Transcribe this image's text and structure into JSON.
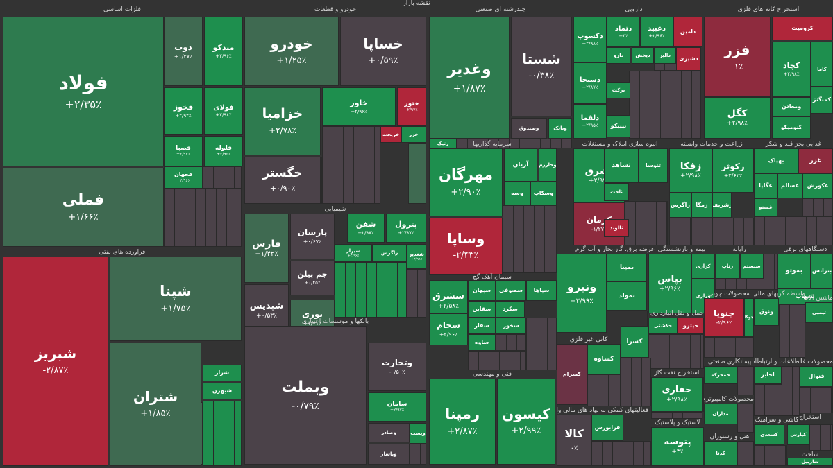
{
  "colors": {
    "pos3": "#1e8f4e",
    "pos2": "#2e7b4f",
    "pos1": "#3f6a51",
    "neu": "#4b4249",
    "neg1": "#6b3345",
    "neg2": "#8e2b3e",
    "neg3": "#b0263a",
    "bg": "#333333"
  },
  "map": {
    "title": "نقشه بازار",
    "sectors": [
      {
        "name": "فلزات اساسی",
        "tiles": [
          {
            "s": "فولاد",
            "c": "+۲/۳۵٪",
            "tone": "pos2"
          },
          {
            "s": "فملی",
            "c": "+۱/۶۶٪",
            "tone": "pos1"
          },
          {
            "s": "ذوب",
            "c": "+۱/۳۷٪",
            "tone": "pos1"
          },
          {
            "s": "میدکو",
            "c": "+۲/۹۶٪",
            "tone": "pos3"
          },
          {
            "s": "فخوز",
            "c": "+۲/۹۴٪",
            "tone": "pos3"
          },
          {
            "s": "فولای",
            "c": "+۲/۹۸٪",
            "tone": "pos3"
          },
          {
            "s": "فصبا",
            "c": "+۲/۹۷٪",
            "tone": "pos3"
          },
          {
            "s": "فلوله",
            "c": "+۲/۹۵٪",
            "tone": "pos3"
          },
          {
            "s": "فجهان",
            "c": "+۲/۹۶٪",
            "tone": "pos3"
          }
        ]
      },
      {
        "name": "فراورده های نفتی",
        "tiles": [
          {
            "s": "شبریز",
            "c": "-۲/۸۷٪",
            "tone": "neg3"
          },
          {
            "s": "شپنا",
            "c": "+۱/۷۵٪",
            "tone": "pos1"
          },
          {
            "s": "شتران",
            "c": "+۱/۸۵٪",
            "tone": "pos1"
          },
          {
            "s": "شراز",
            "c": "",
            "tone": "pos3"
          },
          {
            "s": "شبهرن",
            "c": "",
            "tone": "pos3"
          }
        ]
      },
      {
        "name": "خودرو و قطعات",
        "tiles": [
          {
            "s": "خودرو",
            "c": "+۱/۲۵٪",
            "tone": "pos1"
          },
          {
            "s": "خساپا",
            "c": "+۰/۵۹٪",
            "tone": "neu"
          },
          {
            "s": "خزامیا",
            "c": "+۲/۷۸٪",
            "tone": "pos2"
          },
          {
            "s": "خگستر",
            "c": "+۰/۹۰٪",
            "tone": "neu"
          },
          {
            "s": "خاور",
            "c": "+۲/۹۶٪",
            "tone": "pos3"
          },
          {
            "s": "ختور",
            "c": "-۲/۹۷٪",
            "tone": "neg3"
          },
          {
            "s": "خریخت",
            "c": "",
            "tone": "neg3"
          },
          {
            "s": "خزر",
            "c": "",
            "tone": "pos3"
          }
        ]
      },
      {
        "name": "شیمیایی",
        "tiles": [
          {
            "s": "فارس",
            "c": "+۱/۴۲٪",
            "tone": "pos1"
          },
          {
            "s": "پارسان",
            "c": "+۰/۶۷٪",
            "tone": "neu"
          },
          {
            "s": "جم پیلن",
            "c": "+۰/۴۵٪",
            "tone": "neu"
          },
          {
            "s": "شپدیس",
            "c": "+۰/۵۳٪",
            "tone": "neu"
          },
          {
            "s": "نوری",
            "c": "+۱/۷۱٪",
            "tone": "pos1"
          },
          {
            "s": "شفن",
            "c": "+۲/۹۸٪",
            "tone": "pos3"
          },
          {
            "s": "پترول",
            "c": "+۲/۹۷٪",
            "tone": "pos3"
          },
          {
            "s": "شغدیر",
            "c": "+۲/۹۹٪",
            "tone": "pos3"
          },
          {
            "s": "شیراز",
            "c": "+۲/۹۶٪",
            "tone": "pos3"
          },
          {
            "s": "زاگرس",
            "c": "",
            "tone": "pos3"
          },
          {
            "s": "شاراک",
            "c": "",
            "tone": "pos3"
          }
        ]
      },
      {
        "name": "بانکها و موسسات اعتباری",
        "tiles": [
          {
            "s": "وبملت",
            "c": "-۰/۷۹٪",
            "tone": "neu"
          },
          {
            "s": "وتجارت",
            "c": "-۰/۵۰٪",
            "tone": "neu"
          },
          {
            "s": "سامان",
            "c": "+۲/۹۷٪",
            "tone": "pos3"
          },
          {
            "s": "وصادر",
            "c": "",
            "tone": "neu"
          },
          {
            "s": "وپاسار",
            "c": "",
            "tone": "neu"
          },
          {
            "s": "وپست",
            "c": "",
            "tone": "pos3"
          }
        ]
      },
      {
        "name": "چندرشته ای صنعتی",
        "tiles": [
          {
            "s": "وغدیر",
            "c": "+۱/۸۷٪",
            "tone": "pos2"
          },
          {
            "s": "شستا",
            "c": "-۰/۳۸٪",
            "tone": "neu"
          },
          {
            "s": "وصندوق",
            "c": "",
            "tone": "neu"
          },
          {
            "s": "وبانک",
            "c": "",
            "tone": "pos3"
          },
          {
            "s": "رنیک",
            "c": "",
            "tone": "pos3"
          }
        ]
      },
      {
        "name": "سرمایه گذاریها",
        "tiles": [
          {
            "s": "مهرگان",
            "c": "+۲/۹۰٪",
            "tone": "pos3"
          },
          {
            "s": "وساپا",
            "c": "-۲/۴۳٪",
            "tone": "neg3"
          },
          {
            "s": "آریان",
            "c": "",
            "tone": "pos3"
          },
          {
            "s": "وخارزم",
            "c": "",
            "tone": "pos3"
          },
          {
            "s": "وسه",
            "c": "",
            "tone": "pos3"
          },
          {
            "s": "وسکاب",
            "c": "",
            "tone": "pos3"
          }
        ]
      },
      {
        "name": "سیمان آهک گچ",
        "tiles": [
          {
            "s": "سشرق",
            "c": "+۲/۵۸٪",
            "tone": "pos3"
          },
          {
            "s": "سجام",
            "c": "+۲/۹۶٪",
            "tone": "pos3"
          },
          {
            "s": "سپهان",
            "c": "",
            "tone": "pos3"
          },
          {
            "s": "سصوفی",
            "c": "",
            "tone": "pos3"
          },
          {
            "s": "سپاها",
            "c": "",
            "tone": "pos3"
          },
          {
            "s": "سقاین",
            "c": "",
            "tone": "pos3"
          },
          {
            "s": "سکرد",
            "c": "",
            "tone": "pos3"
          },
          {
            "s": "سفار",
            "c": "",
            "tone": "pos3"
          },
          {
            "s": "سخوز",
            "c": "",
            "tone": "pos3"
          },
          {
            "s": "ساوه",
            "c": "",
            "tone": "pos3"
          }
        ]
      },
      {
        "name": "فنی و مهندسی",
        "tiles": [
          {
            "s": "رمپنا",
            "c": "+۲/۸۷٪",
            "tone": "pos3"
          },
          {
            "s": "کیسون",
            "c": "+۲/۹۹٪",
            "tone": "pos3"
          }
        ]
      },
      {
        "name": "دارویی",
        "tiles": [
          {
            "s": "دکسوپ",
            "c": "+۲/۹۸٪",
            "tone": "pos3"
          },
          {
            "s": "دتماد",
            "c": "+۳٪",
            "tone": "pos3"
          },
          {
            "s": "دعبید",
            "c": "+۲/۹۶٪",
            "tone": "pos3"
          },
          {
            "s": "دامین",
            "c": "",
            "tone": "neg3"
          },
          {
            "s": "دسبحا",
            "c": "+۲/۸۷٪",
            "tone": "pos3"
          },
          {
            "s": "دلقما",
            "c": "+۲/۹۵٪",
            "tone": "pos3"
          },
          {
            "s": "دارو",
            "c": "",
            "tone": "pos3"
          },
          {
            "s": "برکت",
            "c": "",
            "tone": "pos3"
          },
          {
            "s": "تیپیکو",
            "c": "",
            "tone": "pos3"
          },
          {
            "s": "دپخش",
            "c": "",
            "tone": "pos3"
          },
          {
            "s": "دالبر",
            "c": "",
            "tone": "pos3"
          },
          {
            "s": "دشیری",
            "c": "",
            "tone": "neg3"
          }
        ]
      },
      {
        "name": "استخراج کانه های فلزی",
        "tiles": [
          {
            "s": "فزر",
            "c": "-۱٪",
            "tone": "neg2"
          },
          {
            "s": "کگل",
            "c": "+۲/۹۸٪",
            "tone": "pos3"
          },
          {
            "s": "کرومیت",
            "c": "",
            "tone": "neg3"
          },
          {
            "s": "کچاد",
            "c": "+۲/۹۸٪",
            "tone": "pos3"
          },
          {
            "s": "کاما",
            "c": "",
            "tone": "pos3"
          },
          {
            "s": "کمنگنز",
            "c": "",
            "tone": "pos3"
          },
          {
            "s": "ومعادن",
            "c": "",
            "tone": "pos3"
          },
          {
            "s": "کنومیکو",
            "c": "",
            "tone": "pos3"
          }
        ]
      },
      {
        "name": "انبوه سازی املاک و مستغلات",
        "tiles": [
          {
            "s": "تشرق",
            "c": "+۲/۹۷٪",
            "tone": "pos3"
          },
          {
            "s": "کرمان",
            "c": "-۱/۲۷٪",
            "tone": "neg2"
          },
          {
            "s": "ثشاهد",
            "c": "",
            "tone": "pos3"
          },
          {
            "s": "ثنوسا",
            "c": "",
            "tone": "pos3"
          },
          {
            "s": "ثاخت",
            "c": "",
            "tone": "pos3"
          },
          {
            "s": "ثالوند",
            "c": "",
            "tone": "neg3"
          }
        ]
      },
      {
        "name": "زراعت و خدمات وابسته",
        "tiles": [
          {
            "s": "زفکا",
            "c": "+۲/۹۸٪",
            "tone": "pos3"
          },
          {
            "s": "زکوثر",
            "c": "+۲/۶۲٪",
            "tone": "pos3"
          },
          {
            "s": "زاگرس",
            "c": "",
            "tone": "pos3"
          },
          {
            "s": "زمگا",
            "c": "",
            "tone": "pos3"
          },
          {
            "s": "زشریف",
            "c": "",
            "tone": "pos3"
          }
        ]
      },
      {
        "name": "غذایی بجز قند و شکر",
        "tiles": [
          {
            "s": "بهپاک",
            "c": "",
            "tone": "pos3"
          },
          {
            "s": "غزر",
            "c": "",
            "tone": "neg2"
          },
          {
            "s": "غگلپا",
            "c": "",
            "tone": "pos3"
          },
          {
            "s": "غسالم",
            "c": "",
            "tone": "pos3"
          },
          {
            "s": "غمینو",
            "c": "",
            "tone": "pos3"
          },
          {
            "s": "غکورش",
            "c": "",
            "tone": "pos3"
          }
        ]
      },
      {
        "name": "عرضه برق، گاز،بخار و آب گرم",
        "tiles": [
          {
            "s": "ونیرو",
            "c": "+۲/۹۹٪",
            "tone": "pos3"
          },
          {
            "s": "بمپنا",
            "c": "",
            "tone": "pos3"
          },
          {
            "s": "بمولد",
            "c": "",
            "tone": "pos3"
          }
        ]
      },
      {
        "name": "بیمه و بازنشستگی",
        "tiles": [
          {
            "s": "بپاس",
            "c": "+۲/۹۶٪",
            "tone": "pos3"
          },
          {
            "s": "کرازی",
            "c": "",
            "tone": "pos3"
          },
          {
            "s": "ورازی",
            "c": "",
            "tone": "pos3"
          }
        ]
      },
      {
        "name": "محصولات چوبی",
        "tiles": [
          {
            "s": "چنوپا",
            "c": "-۲/۹۶٪",
            "tone": "neg3"
          },
          {
            "s": "چوکا",
            "c": "",
            "tone": "pos3"
          }
        ]
      },
      {
        "name": "رایانه",
        "tiles": [
          {
            "s": "رتاپ",
            "c": "",
            "tone": "pos3"
          },
          {
            "s": "سیستم",
            "c": "",
            "tone": "pos3"
          }
        ]
      },
      {
        "name": "دستگاههای برقی",
        "tiles": [
          {
            "s": "بموتو",
            "c": "",
            "tone": "pos3"
          },
          {
            "s": "بترانس",
            "c": "",
            "tone": "pos3"
          },
          {
            "s": "بشهاب",
            "c": "",
            "tone": "pos3"
          }
        ]
      },
      {
        "name": "حمل و نقل انبارداری و ارتباطات",
        "tiles": [
          {
            "s": "حکشتی",
            "c": "",
            "tone": "pos3"
          },
          {
            "s": "حپترو",
            "c": "",
            "tone": "neg3"
          }
        ]
      },
      {
        "name": "کانی غیر فلزی",
        "tiles": [
          {
            "s": "کسرام",
            "c": "",
            "tone": "neg1"
          },
          {
            "s": "کساوه",
            "c": "",
            "tone": "pos3"
          },
          {
            "s": "کسرا",
            "c": "",
            "tone": "pos3"
          }
        ]
      },
      {
        "name": "استخراج نفت گاز",
        "tiles": [
          {
            "s": "حفاری",
            "c": "+۲/۹۸٪",
            "tone": "pos3"
          }
        ]
      },
      {
        "name": "لاستیک و پلاستیک",
        "tiles": [
          {
            "s": "پتوسه",
            "c": "+۳٪",
            "tone": "pos3"
          }
        ]
      },
      {
        "name": "فعالیتهای کمکی به نهاد های مالی واسط",
        "tiles": [
          {
            "s": "کالا",
            "c": "۰٪",
            "tone": "neu"
          },
          {
            "s": "فرابورس",
            "c": "",
            "tone": "pos3"
          }
        ]
      },
      {
        "name": "پیمانکاری صنعتی",
        "tiles": [
          {
            "s": "خمحرکه",
            "c": "",
            "tone": "pos3"
          }
        ]
      },
      {
        "name": "محصولات کامپیوتری",
        "tiles": [
          {
            "s": "مداران",
            "c": "",
            "tone": "pos3"
          }
        ]
      },
      {
        "name": "هتل و رستوران",
        "tiles": [
          {
            "s": "گدنا",
            "c": "",
            "tone": "pos3"
          }
        ]
      },
      {
        "name": "اطلاعات و ارتباطات",
        "tiles": [
          {
            "s": "اخابر",
            "c": "",
            "tone": "pos3"
          }
        ]
      },
      {
        "name": "محصولات فلزی",
        "tiles": [
          {
            "s": "فنوال",
            "c": "",
            "tone": "pos3"
          }
        ]
      },
      {
        "name": "کاشی و سرامیک",
        "tiles": [
          {
            "s": "کسعدی",
            "c": "",
            "tone": "pos3"
          }
        ]
      },
      {
        "name": "استخراج",
        "tiles": [
          {
            "s": "کپارس",
            "c": "",
            "tone": "pos3"
          }
        ]
      },
      {
        "name": "ماشین آلات",
        "tiles": [
          {
            "s": "تپمپی",
            "c": "",
            "tone": "pos3"
          }
        ]
      },
      {
        "name": "واسطه گریهای مالی",
        "tiles": [
          {
            "s": "وثوق",
            "c": "",
            "tone": "pos3"
          }
        ]
      },
      {
        "name": "ساخت",
        "tiles": [
          {
            "s": "ساربیل",
            "c": "",
            "tone": "pos3"
          }
        ]
      }
    ]
  }
}
